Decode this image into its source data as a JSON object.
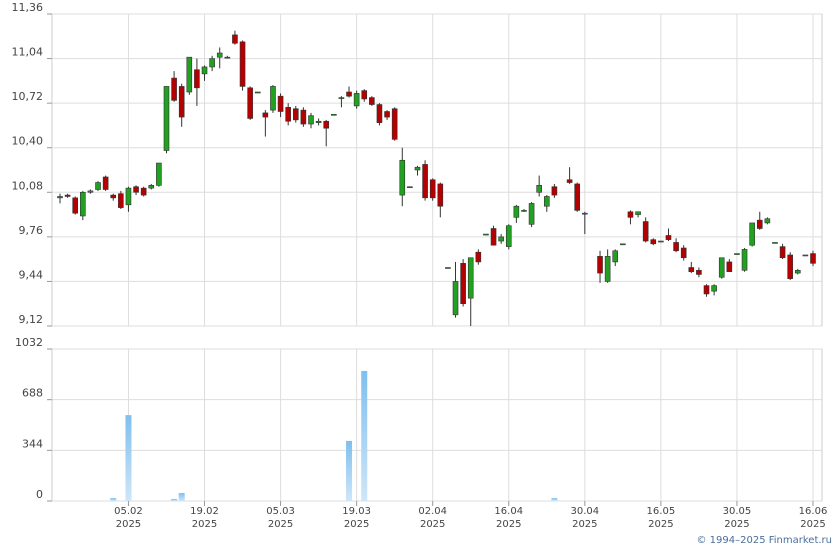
{
  "footer": "© 1994–2025 Finmarket.ru",
  "chart_data": [
    {
      "type": "candlestick",
      "up_color": "#22a022",
      "down_color": "#b30000",
      "grid": true,
      "ylim": [
        9.12,
        11.36
      ],
      "yticks": [
        {
          "value": 9.12,
          "label": "9,12"
        },
        {
          "value": 9.44,
          "label": "9,44"
        },
        {
          "value": 9.76,
          "label": "9,76"
        },
        {
          "value": 10.08,
          "label": "10,08"
        },
        {
          "value": 10.4,
          "label": "10,40"
        },
        {
          "value": 10.72,
          "label": "10,72"
        },
        {
          "value": 11.04,
          "label": "11,04"
        },
        {
          "value": 11.36,
          "label": "11,36"
        }
      ],
      "open": [
        10.04,
        10.06,
        10.04,
        9.91,
        10.08,
        10.1,
        10.19,
        10.06,
        10.07,
        9.99,
        10.12,
        10.11,
        10.11,
        10.13,
        10.38,
        10.9,
        10.84,
        10.8,
        10.96,
        10.93,
        10.98,
        11.05,
        11.05,
        11.21,
        11.16,
        10.83,
        10.8,
        10.65,
        10.67,
        10.77,
        10.69,
        10.68,
        10.67,
        10.57,
        10.58,
        10.59,
        10.64,
        10.76,
        10.8,
        10.7,
        10.81,
        10.76,
        10.71,
        10.66,
        10.68,
        10.06,
        10.12,
        10.24,
        10.28,
        10.17,
        10.14,
        9.54,
        9.2,
        9.57,
        9.32,
        9.65,
        9.78,
        9.82,
        9.73,
        9.69,
        9.9,
        9.95,
        9.85,
        10.08,
        9.98,
        10.12,
        null,
        10.17,
        10.14,
        9.93,
        null,
        9.62,
        9.44,
        9.58,
        9.71,
        9.94,
        9.92,
        9.87,
        9.74,
        9.73,
        9.77,
        9.72,
        9.68,
        9.54,
        9.52,
        9.41,
        9.37,
        9.47,
        9.58,
        9.64,
        9.52,
        9.7,
        9.88,
        9.86,
        9.72,
        9.69,
        9.63,
        9.5,
        9.63,
        9.64
      ],
      "high": [
        10.07,
        10.07,
        10.05,
        10.09,
        10.1,
        10.16,
        10.2,
        10.07,
        10.09,
        10.12,
        10.13,
        10.12,
        10.14,
        10.29,
        10.84,
        10.95,
        10.86,
        11.05,
        11.04,
        10.99,
        11.06,
        11.12,
        11.06,
        11.24,
        11.17,
        10.84,
        10.8,
        10.67,
        10.85,
        10.79,
        10.72,
        10.7,
        10.69,
        10.65,
        10.61,
        10.6,
        10.64,
        10.77,
        10.84,
        10.81,
        10.82,
        10.77,
        10.72,
        10.67,
        10.69,
        10.4,
        10.12,
        10.27,
        10.31,
        10.18,
        10.15,
        9.54,
        9.58,
        9.6,
        9.61,
        9.67,
        9.78,
        9.84,
        9.78,
        9.85,
        9.99,
        9.96,
        10.01,
        10.2,
        10.06,
        10.14,
        null,
        10.26,
        10.15,
        9.94,
        null,
        9.66,
        9.67,
        9.67,
        9.71,
        9.95,
        9.94,
        9.9,
        9.75,
        9.73,
        9.82,
        9.75,
        9.7,
        9.58,
        9.54,
        9.42,
        9.42,
        9.61,
        9.6,
        9.64,
        9.68,
        9.86,
        9.94,
        9.9,
        9.72,
        9.71,
        9.65,
        9.53,
        9.63,
        9.66
      ],
      "low": [
        10.0,
        10.04,
        9.92,
        9.88,
        10.07,
        10.09,
        10.09,
        10.02,
        9.96,
        9.94,
        10.06,
        10.05,
        10.1,
        10.12,
        10.36,
        10.73,
        10.55,
        10.78,
        10.7,
        10.88,
        10.95,
        10.97,
        11.04,
        11.14,
        10.81,
        10.6,
        10.8,
        10.48,
        10.65,
        10.62,
        10.56,
        10.58,
        10.55,
        10.54,
        10.56,
        10.41,
        10.64,
        10.69,
        10.76,
        10.68,
        10.73,
        10.7,
        10.56,
        10.6,
        10.45,
        9.98,
        10.12,
        10.2,
        10.02,
        10.02,
        9.9,
        9.54,
        9.18,
        9.26,
        9.12,
        9.56,
        9.78,
        9.7,
        9.71,
        9.67,
        9.86,
        9.94,
        9.83,
        10.05,
        9.94,
        10.04,
        null,
        10.14,
        9.94,
        9.78,
        null,
        9.43,
        9.43,
        9.55,
        9.71,
        9.85,
        9.9,
        9.72,
        9.7,
        9.73,
        9.73,
        9.65,
        9.59,
        9.5,
        9.47,
        9.33,
        9.34,
        9.46,
        9.51,
        9.64,
        9.51,
        9.69,
        9.81,
        9.85,
        9.72,
        9.6,
        9.45,
        9.49,
        9.63,
        9.55
      ],
      "close": [
        10.05,
        10.05,
        9.93,
        10.08,
        10.09,
        10.15,
        10.1,
        10.04,
        9.97,
        10.11,
        10.08,
        10.06,
        10.13,
        10.29,
        10.84,
        10.74,
        10.62,
        11.05,
        10.83,
        10.98,
        11.04,
        11.08,
        11.05,
        11.15,
        10.84,
        10.61,
        10.8,
        10.62,
        10.84,
        10.66,
        10.59,
        10.6,
        10.57,
        10.63,
        10.59,
        10.54,
        10.64,
        10.76,
        10.77,
        10.79,
        10.75,
        10.71,
        10.58,
        10.62,
        10.46,
        10.31,
        10.12,
        10.26,
        10.04,
        10.04,
        9.98,
        9.54,
        9.44,
        9.28,
        9.61,
        9.58,
        9.78,
        9.7,
        9.76,
        9.84,
        9.98,
        9.95,
        10.0,
        10.13,
        10.05,
        10.06,
        null,
        10.15,
        9.95,
        9.93,
        null,
        9.5,
        9.62,
        9.66,
        9.71,
        9.9,
        9.94,
        9.73,
        9.71,
        9.73,
        9.74,
        9.66,
        9.61,
        9.51,
        9.49,
        9.35,
        9.41,
        9.61,
        9.51,
        9.64,
        9.67,
        9.86,
        9.82,
        9.89,
        9.72,
        9.61,
        9.46,
        9.52,
        9.63,
        9.57
      ]
    },
    {
      "type": "bar",
      "color": "#7fbfee",
      "grid": true,
      "ylim": [
        0,
        1032
      ],
      "yticks": [
        0,
        344,
        688,
        1032
      ],
      "categories": [
        null,
        null,
        null,
        null,
        null,
        null,
        null,
        null,
        null,
        "05.02\n2025",
        null,
        null,
        null,
        null,
        null,
        null,
        null,
        null,
        null,
        "19.02\n2025",
        null,
        null,
        null,
        null,
        null,
        null,
        null,
        null,
        null,
        "05.03\n2025",
        null,
        null,
        null,
        null,
        null,
        null,
        null,
        null,
        null,
        "19.03\n2025",
        null,
        null,
        null,
        null,
        null,
        null,
        null,
        null,
        null,
        "02.04\n2025",
        null,
        null,
        null,
        null,
        null,
        null,
        null,
        null,
        null,
        "16.04\n2025",
        null,
        null,
        null,
        null,
        null,
        null,
        null,
        null,
        null,
        "30.04\n2025",
        null,
        null,
        null,
        null,
        null,
        null,
        null,
        null,
        null,
        "16.05\n2025",
        null,
        null,
        null,
        null,
        null,
        null,
        null,
        null,
        null,
        "30.05\n2025",
        null,
        null,
        null,
        null,
        null,
        null,
        null,
        null,
        null,
        "16.06\n2025"
      ],
      "values": [
        0,
        0,
        0,
        0,
        0,
        0,
        0,
        20,
        0,
        583,
        0,
        0,
        0,
        0,
        0,
        14,
        54,
        0,
        0,
        0,
        0,
        0,
        0,
        0,
        0,
        0,
        0,
        0,
        0,
        0,
        0,
        0,
        0,
        0,
        0,
        0,
        0,
        0,
        408,
        0,
        883,
        0,
        0,
        0,
        0,
        0,
        0,
        0,
        0,
        0,
        0,
        0,
        0,
        0,
        0,
        0,
        0,
        0,
        0,
        0,
        0,
        0,
        0,
        0,
        0,
        20,
        null,
        0,
        0,
        0,
        null,
        0,
        0,
        0,
        0,
        0,
        0,
        0,
        0,
        0,
        0,
        0,
        0,
        0,
        0,
        0,
        0,
        0,
        0,
        0,
        0,
        0,
        0,
        0,
        0,
        0,
        0,
        0,
        0,
        0
      ]
    }
  ]
}
